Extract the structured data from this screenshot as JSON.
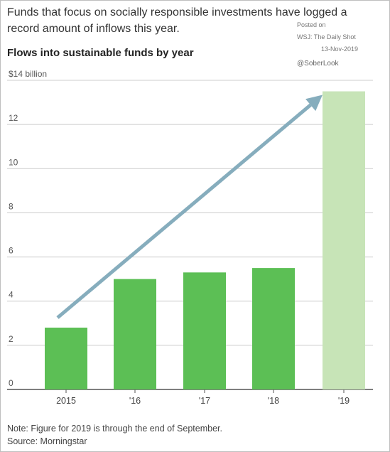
{
  "header": {
    "subtitle": "Funds that focus on socially responsible investments have logged a record amount of inflows this year.",
    "title": "Flows into sustainable funds by year"
  },
  "watermark": {
    "posted_on": "Posted on",
    "source": "WSJ: The Daily Shot",
    "date": "13-Nov-2019",
    "handle": "@SoberLook"
  },
  "footer": {
    "note": "Note: Figure for 2019 is through the end of September.",
    "source": "Source: Morningstar"
  },
  "colors": {
    "bar": "#5cbf55",
    "bar_partial": "#c7e4b7",
    "arrow": "#86adbd",
    "grid": "#cccccc",
    "axis": "#555555"
  },
  "chart_data": {
    "type": "bar",
    "categories": [
      "2015",
      "'16",
      "'17",
      "'18",
      "'19"
    ],
    "values": [
      2.8,
      5.0,
      5.3,
      5.5,
      13.5
    ],
    "partial": [
      false,
      false,
      false,
      false,
      true
    ],
    "yticks": [
      0,
      2,
      4,
      6,
      8,
      10,
      12,
      14
    ],
    "ytick_labels": [
      "0",
      "2",
      "4",
      "6",
      "8",
      "10",
      "12",
      "$14 billion"
    ],
    "ylim": [
      0,
      14
    ],
    "unit": "$ billion",
    "grid": true,
    "annotation": "upward arrow from 2015 bar toward 2019 bar"
  }
}
